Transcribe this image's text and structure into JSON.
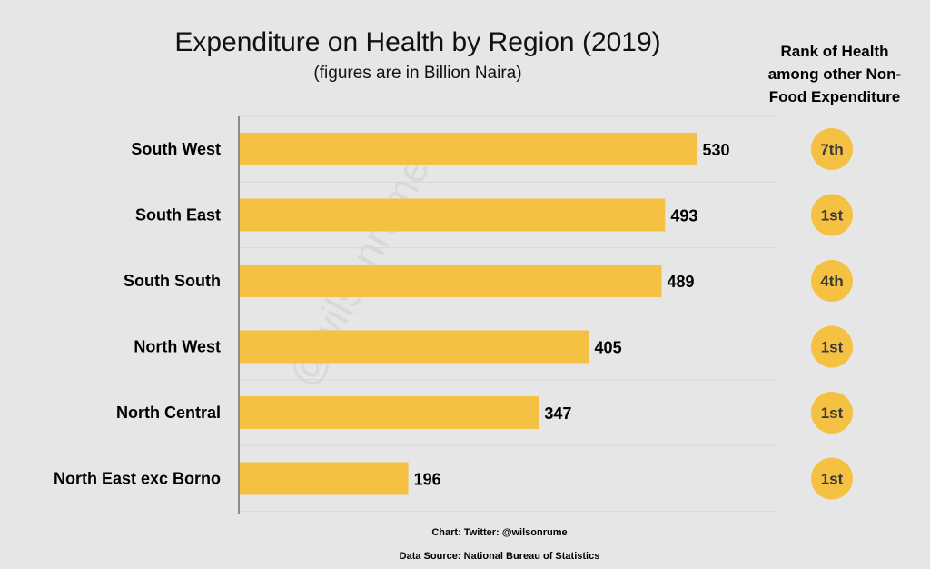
{
  "chart_data": {
    "type": "bar",
    "orientation": "horizontal",
    "title": "Expenditure on Health by Region (2019)",
    "subtitle": "(figures are in Billion Naira)",
    "categories": [
      "South West",
      "South East",
      "South South",
      "North West",
      "North Central",
      "North East exc Borno"
    ],
    "values": [
      530,
      493,
      489,
      405,
      347,
      196
    ],
    "xlim": [
      0,
      620
    ],
    "grid": true,
    "bar_color": "#f4c143",
    "rank_header": [
      "Rank of Health",
      "among other Non-",
      "Food Expenditure"
    ],
    "ranks": [
      "7th",
      "1st",
      "4th",
      "1st",
      "1st",
      "1st"
    ]
  },
  "watermark": "@wilsonrume",
  "credit": "Chart: Twitter: @wilsonrume",
  "source": "Data Source: National Bureau of Statistics"
}
